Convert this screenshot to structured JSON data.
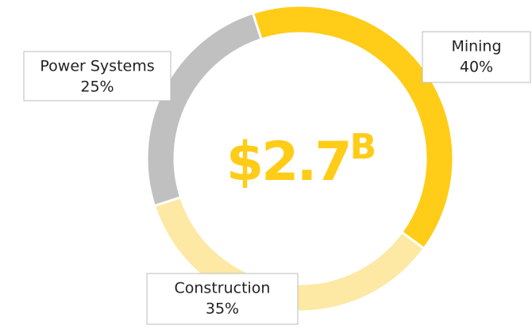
{
  "chart_data": {
    "type": "donut",
    "center_label": {
      "main": "$2.7",
      "sup": "B"
    },
    "categories": [
      "Mining",
      "Construction",
      "Power Systems"
    ],
    "values": [
      40,
      35,
      25
    ],
    "value_labels": [
      "40%",
      "35%",
      "25%"
    ],
    "colors": [
      "#ffcc17",
      "#fde8a4",
      "#c0c0c0"
    ]
  }
}
